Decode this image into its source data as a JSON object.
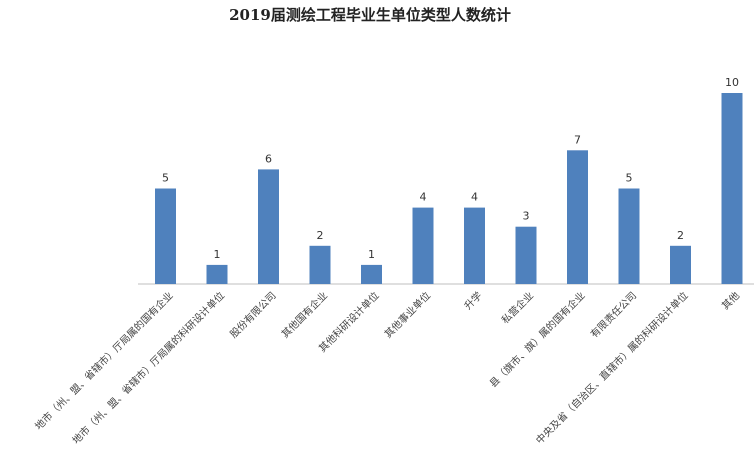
{
  "chart_data": {
    "type": "bar",
    "title": "2019届测绘工程毕业生单位类型人数统计",
    "categories": [
      "地市（州、盟、省辖市）厅局属的国有企业",
      "地市（州、盟、省辖市）厅局属的科研设计单位",
      "股份有限公司",
      "其他国有企业",
      "其他科研设计单位",
      "其他事业单位",
      "升学",
      "私营企业",
      "县（旗市、旗）属的国有企业",
      "有限责任公司",
      "中央及省（自治区、直辖市）属的科研设计单位",
      "其他"
    ],
    "values": [
      5,
      1,
      6,
      2,
      1,
      4,
      4,
      3,
      7,
      5,
      2,
      10
    ],
    "xlabel": "",
    "ylabel": "",
    "ylim": [
      0,
      10
    ],
    "grid": false,
    "legend": "none",
    "bar_color": "#4f81bd"
  }
}
